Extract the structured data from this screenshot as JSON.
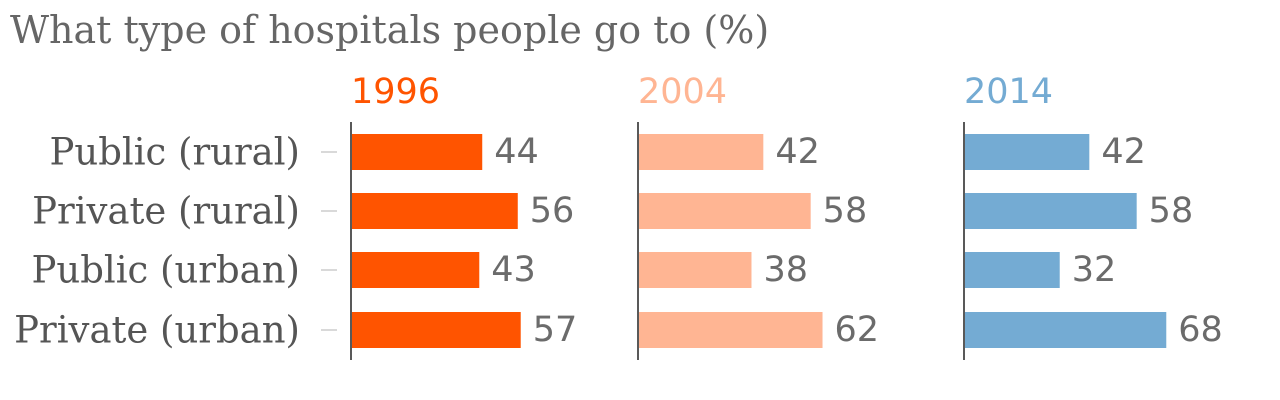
{
  "chart_data": {
    "type": "bar",
    "title": "What type of hospitals people go to (%)",
    "categories": [
      "Public (rural)",
      "Private (rural)",
      "Public (urban)",
      "Private (urban)"
    ],
    "series": [
      {
        "name": "1996",
        "color": "#ff5400",
        "values": [
          44,
          56,
          43,
          57
        ]
      },
      {
        "name": "2004",
        "color": "#ffb593",
        "values": [
          42,
          58,
          38,
          62
        ]
      },
      {
        "name": "2014",
        "color": "#74abd3",
        "values": [
          42,
          58,
          32,
          68
        ]
      }
    ],
    "orientation": "horizontal",
    "xlim": [
      0,
      100
    ],
    "grid": false,
    "legend": "none"
  }
}
